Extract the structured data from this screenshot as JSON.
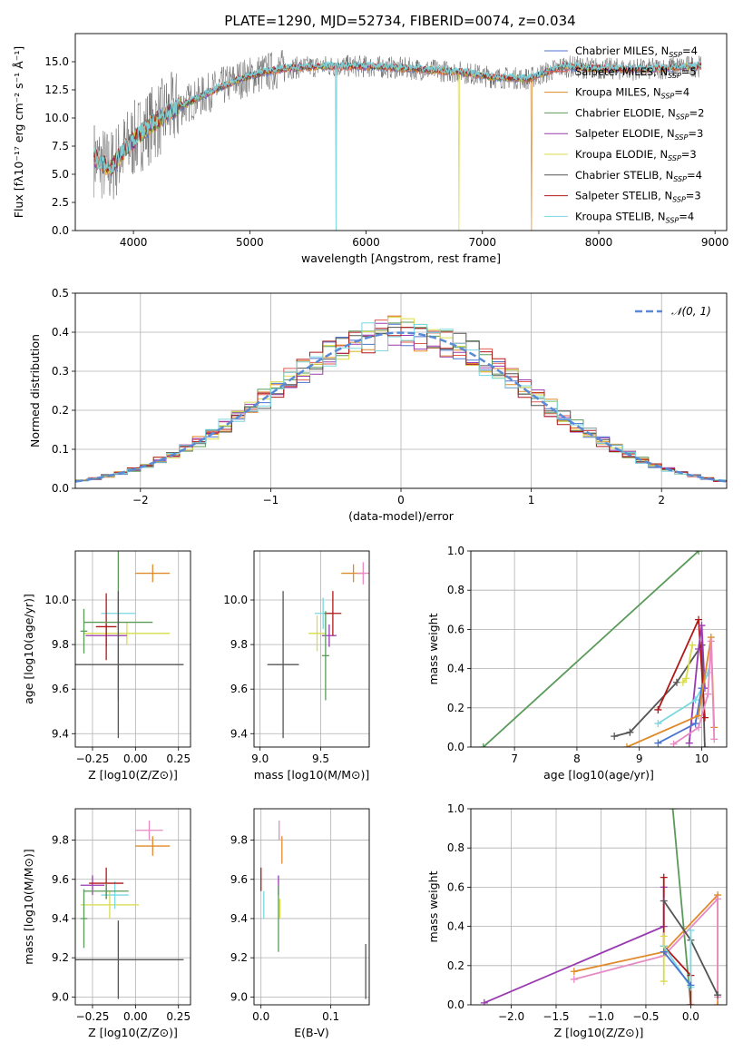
{
  "figure_title": "PLATE=1290, MJD=52734, FIBERID=0074, z=0.034",
  "legend_labels": [
    {
      "prefix": "Chabrier MILES, N",
      "n": "4",
      "color": "#4a74d0"
    },
    {
      "prefix": "Salpeter MILES, N",
      "n": "5",
      "color": "#e05a50"
    },
    {
      "prefix": "Kroupa MILES, N",
      "n": "4",
      "color": "#e08a2a"
    },
    {
      "prefix": "Chabrier ELODIE, N",
      "n": "2",
      "color": "#5a9a5a"
    },
    {
      "prefix": "Salpeter ELODIE, N",
      "n": "3",
      "color": "#9a3ab0"
    },
    {
      "prefix": "Kroupa ELODIE, N",
      "n": "3",
      "color": "#d8dc4a"
    },
    {
      "prefix": "Chabrier STELIB, N",
      "n": "4",
      "color": "#555555"
    },
    {
      "prefix": "Salpeter STELIB, N",
      "n": "3",
      "color": "#b01818"
    },
    {
      "prefix": "Kroupa STELIB, N",
      "n": "4",
      "color": "#7ad8e0"
    }
  ],
  "chart_data": [
    {
      "id": "spectrum",
      "type": "line",
      "title": "PLATE=1290, MJD=52734, FIBERID=0074, z=0.034",
      "xlabel": "wavelength [Angstrom, rest frame]",
      "ylabel": "Flux [fλ10⁻¹⁷ erg cm⁻² s⁻¹ Å⁻¹]",
      "xlim": [
        3500,
        9100
      ],
      "ylim": [
        0,
        17.5
      ],
      "xticks": [
        "4000",
        "5000",
        "6000",
        "7000",
        "8000",
        "9000"
      ],
      "yticks": [
        "0.0",
        "2.5",
        "5.0",
        "7.5",
        "10.0",
        "12.5",
        "15.0"
      ],
      "continuum_x": [
        3650,
        3800,
        3950,
        4100,
        4300,
        4500,
        4700,
        4900,
        5100,
        5300,
        5600,
        5900,
        6200,
        6500,
        6800,
        7100,
        7400,
        7700,
        8000,
        8400,
        8800
      ],
      "continuum_y": [
        6.5,
        5.5,
        7.5,
        9.0,
        10.5,
        11.5,
        12.5,
        13.4,
        14.0,
        14.4,
        14.6,
        14.6,
        14.5,
        14.3,
        14.1,
        13.6,
        13.5,
        14.6,
        14.4,
        14.3,
        14.6
      ],
      "absorption_dips": [
        {
          "x": 5740,
          "y": 0,
          "series": "Kroupa STELIB"
        },
        {
          "x": 6800,
          "y": 0,
          "series": "Kroupa ELODIE"
        },
        {
          "x": 7420,
          "y": 0,
          "series": "Kroupa MILES"
        }
      ]
    },
    {
      "id": "residuals",
      "type": "step",
      "xlabel": "(data-model)/error",
      "ylabel": "Normed distribution",
      "xlim": [
        -2.5,
        2.5
      ],
      "ylim": [
        0,
        0.5
      ],
      "xticks": [
        "−2",
        "−1",
        "0",
        "1",
        "2"
      ],
      "yticks": [
        "0.0",
        "0.1",
        "0.2",
        "0.3",
        "0.4",
        "0.5"
      ],
      "gaussian_label": "𝒩(0, 1)",
      "gaussian_color": "#5a8ad6",
      "bin_width": 0.1
    },
    {
      "id": "age_vs_Z",
      "type": "errorbar",
      "xlabel": "Z [log10(Z/Z⊙)]",
      "ylabel": "age  [log10(age/yr)]",
      "xlim": [
        -0.35,
        0.32
      ],
      "ylim": [
        9.34,
        10.22
      ],
      "xticks": [
        "−0.25",
        "0.00",
        "0.25"
      ],
      "yticks": [
        "9.4",
        "9.6",
        "9.8",
        "10.0"
      ],
      "points": [
        {
          "x": 0.1,
          "y": 10.12,
          "xerr": 0.1,
          "yerr": 0.04,
          "color": "#e08a2a"
        },
        {
          "x": -0.05,
          "y": 9.85,
          "xerr": 0.25,
          "yerr": 0.05,
          "color": "#d8dc4a"
        },
        {
          "x": -0.1,
          "y": 9.94,
          "xerr": 0.1,
          "yerr": 0.07,
          "color": "#7ad8e0"
        },
        {
          "x": -0.17,
          "y": 9.84,
          "xerr": 0.12,
          "yerr": 0.05,
          "color": "#9a3ab0"
        },
        {
          "x": -0.17,
          "y": 9.88,
          "xerr": 0.06,
          "yerr": 0.15,
          "color": "#b01818"
        },
        {
          "x": -0.1,
          "y": 9.9,
          "xerr": 0.2,
          "yerr": 0.35,
          "color": "#5a9a5a"
        },
        {
          "x": -0.1,
          "y": 9.71,
          "xerr": 0.38,
          "yerr": 0.33,
          "color": "#555555"
        },
        {
          "x": -0.3,
          "y": 9.86,
          "xerr": 0.02,
          "yerr": 0.1,
          "color": "#5a9a5a"
        }
      ]
    },
    {
      "id": "age_vs_mass",
      "type": "errorbar",
      "xlabel": "mass [log10(M/M⊙)]",
      "ylabel": "",
      "xlim": [
        8.95,
        9.9
      ],
      "ylim": [
        9.34,
        10.22
      ],
      "xticks": [
        "9.0",
        "9.5"
      ],
      "yticks": [
        "9.4",
        "9.6",
        "9.8",
        "10.0"
      ],
      "points": [
        {
          "x": 9.77,
          "y": 10.12,
          "xerr": 0.1,
          "yerr": 0.04,
          "color": "#e08a2a"
        },
        {
          "x": 9.85,
          "y": 10.12,
          "xerr": 0.05,
          "yerr": 0.05,
          "color": "#e78ac3"
        },
        {
          "x": 9.47,
          "y": 9.85,
          "xerr": 0.07,
          "yerr": 0.08,
          "color": "#d8dc4a"
        },
        {
          "x": 9.52,
          "y": 9.94,
          "xerr": 0.07,
          "yerr": 0.07,
          "color": "#7ad8e0"
        },
        {
          "x": 9.57,
          "y": 9.84,
          "xerr": 0.06,
          "yerr": 0.05,
          "color": "#9a3ab0"
        },
        {
          "x": 9.6,
          "y": 9.94,
          "xerr": 0.07,
          "yerr": 0.1,
          "color": "#b01818"
        },
        {
          "x": 9.54,
          "y": 9.75,
          "xerr": 0.03,
          "yerr": 0.2,
          "color": "#5a9a5a"
        },
        {
          "x": 9.19,
          "y": 9.71,
          "xerr": 0.13,
          "yerr": 0.33,
          "color": "#555555"
        }
      ]
    },
    {
      "id": "weight_vs_age",
      "type": "line",
      "xlabel": "age  [log10(age/yr)]",
      "ylabel": "mass weight",
      "xlim": [
        6.3,
        10.4
      ],
      "ylim": [
        0,
        1.0
      ],
      "xticks": [
        "7",
        "8",
        "9",
        "10"
      ],
      "yticks": [
        "0.0",
        "0.2",
        "0.4",
        "0.6",
        "0.8",
        "1.0"
      ],
      "series": [
        {
          "color": "#5a9a5a",
          "x": [
            6.5,
            9.95
          ],
          "y": [
            0.0,
            1.0
          ]
        },
        {
          "color": "#555555",
          "x": [
            8.6,
            8.85,
            9.6,
            10.0,
            10.05
          ],
          "y": [
            0.055,
            0.075,
            0.33,
            0.52,
            0.0
          ]
        },
        {
          "color": "#b01818",
          "x": [
            9.3,
            9.95,
            10.05
          ],
          "y": [
            0.19,
            0.65,
            0.15
          ]
        },
        {
          "color": "#9a3ab0",
          "x": [
            9.8,
            9.95,
            10.0,
            10.05
          ],
          "y": [
            0.02,
            0.5,
            0.62,
            0.3
          ]
        },
        {
          "color": "#7ad8e0",
          "x": [
            9.3,
            9.9,
            10.0,
            10.1
          ],
          "y": [
            0.12,
            0.24,
            0.3,
            0.38
          ]
        },
        {
          "color": "#d8dc4a",
          "x": [
            9.7,
            9.75,
            9.85
          ],
          "y": [
            0.33,
            0.35,
            0.52
          ]
        },
        {
          "color": "#4a74d0",
          "x": [
            9.3,
            9.9,
            10.0
          ],
          "y": [
            0.02,
            0.12,
            0.3
          ]
        },
        {
          "color": "#e08a2a",
          "x": [
            8.8,
            9.95,
            10.15,
            10.2
          ],
          "y": [
            0.0,
            0.16,
            0.56,
            0.1
          ]
        },
        {
          "color": "#e78ac3",
          "x": [
            9.55,
            9.95,
            10.1,
            10.15,
            10.2
          ],
          "y": [
            0.015,
            0.1,
            0.27,
            0.54,
            0.04
          ]
        }
      ]
    },
    {
      "id": "mass_vs_Z",
      "type": "errorbar",
      "xlabel": "Z [log10(Z/Z⊙)]",
      "ylabel": "mass [log10(M/M⊙)]",
      "xlim": [
        -0.35,
        0.32
      ],
      "ylim": [
        8.96,
        9.96
      ],
      "xticks": [
        "−0.25",
        "0.00",
        "0.25"
      ],
      "yticks": [
        "9.0",
        "9.2",
        "9.4",
        "9.6",
        "9.8"
      ],
      "points": [
        {
          "x": 0.1,
          "y": 9.77,
          "xerr": 0.1,
          "yerr": 0.05,
          "color": "#e08a2a"
        },
        {
          "x": 0.08,
          "y": 9.85,
          "xerr": 0.08,
          "yerr": 0.05,
          "color": "#e78ac3"
        },
        {
          "x": -0.15,
          "y": 9.47,
          "xerr": 0.17,
          "yerr": 0.07,
          "color": "#d8dc4a"
        },
        {
          "x": -0.12,
          "y": 9.52,
          "xerr": 0.08,
          "yerr": 0.07,
          "color": "#7ad8e0"
        },
        {
          "x": -0.25,
          "y": 9.57,
          "xerr": 0.07,
          "yerr": 0.05,
          "color": "#9a3ab0"
        },
        {
          "x": -0.17,
          "y": 9.58,
          "xerr": 0.1,
          "yerr": 0.08,
          "color": "#b01818"
        },
        {
          "x": -0.17,
          "y": 9.54,
          "xerr": 0.13,
          "yerr": 0.04,
          "color": "#5a9a5a"
        },
        {
          "x": -0.1,
          "y": 9.19,
          "xerr": 0.38,
          "yerr": 0.2,
          "color": "#555555"
        },
        {
          "x": -0.3,
          "y": 9.4,
          "xerr": 0.02,
          "yerr": 0.15,
          "color": "#5a9a5a"
        }
      ]
    },
    {
      "id": "mass_vs_EBV",
      "type": "errorbar",
      "xlabel": "E(B-V)",
      "ylabel": "",
      "xlim": [
        -0.01,
        0.155
      ],
      "ylim": [
        8.96,
        9.96
      ],
      "xticks": [
        "0.0",
        "0.1"
      ],
      "yticks": [
        "9.0",
        "9.2",
        "9.4",
        "9.6",
        "9.8"
      ],
      "points": [
        {
          "x": 0.0,
          "y": 9.6,
          "xerr": 0,
          "yerr": 0.06,
          "color": "#b01818"
        },
        {
          "x": 0.004,
          "y": 9.47,
          "xerr": 0,
          "yerr": 0.07,
          "color": "#7ad8e0"
        },
        {
          "x": 0.025,
          "y": 9.57,
          "xerr": 0,
          "yerr": 0.05,
          "color": "#9a3ab0"
        },
        {
          "x": 0.025,
          "y": 9.4,
          "xerr": 0,
          "yerr": 0.17,
          "color": "#5a9a5a"
        },
        {
          "x": 0.026,
          "y": 9.85,
          "xerr": 0,
          "yerr": 0.05,
          "color": "#e78ac3"
        },
        {
          "x": 0.03,
          "y": 9.75,
          "xerr": 0,
          "yerr": 0.07,
          "color": "#e08a2a"
        },
        {
          "x": 0.027,
          "y": 9.45,
          "xerr": 0,
          "yerr": 0.05,
          "color": "#d8dc4a"
        },
        {
          "x": 0.15,
          "y": 9.13,
          "xerr": 0,
          "yerr": 0.14,
          "color": "#555555"
        }
      ]
    },
    {
      "id": "weight_vs_Z",
      "type": "line",
      "xlabel": "Z [log10(Z/Z⊙)]",
      "ylabel": "mass weight",
      "xlim": [
        -2.45,
        0.4
      ],
      "ylim": [
        0,
        1.0
      ],
      "xticks": [
        "−2.0",
        "−1.5",
        "−1.0",
        "−0.5",
        "0.0"
      ],
      "yticks": [
        "0.0",
        "0.2",
        "0.4",
        "0.6",
        "0.8",
        "1.0"
      ],
      "series": [
        {
          "color": "#5a9a5a",
          "x": [
            -0.2,
            0.0
          ],
          "y": [
            1.0,
            0.0
          ]
        },
        {
          "color": "#9a3ab0",
          "x": [
            -2.3,
            -0.3,
            -0.3
          ],
          "y": [
            0.01,
            0.4,
            0.6
          ]
        },
        {
          "color": "#e08a2a",
          "x": [
            -1.3,
            -0.3,
            0.3,
            0.3
          ],
          "y": [
            0.17,
            0.27,
            0.56,
            0.0
          ]
        },
        {
          "color": "#e78ac3",
          "x": [
            -1.3,
            -0.3,
            0.3,
            0.3
          ],
          "y": [
            0.13,
            0.25,
            0.54,
            0.04
          ]
        },
        {
          "color": "#b01818",
          "x": [
            -0.3,
            -0.3,
            0.0,
            0.0
          ],
          "y": [
            0.65,
            0.3,
            0.15,
            0.0
          ]
        },
        {
          "color": "#555555",
          "x": [
            -0.3,
            0.0,
            0.3
          ],
          "y": [
            0.53,
            0.33,
            0.05
          ]
        },
        {
          "color": "#7ad8e0",
          "x": [
            -0.3,
            0.0,
            0.0
          ],
          "y": [
            0.3,
            0.09,
            0.38
          ]
        },
        {
          "color": "#d8dc4a",
          "x": [
            -0.3,
            -0.3
          ],
          "y": [
            0.35,
            0.12
          ]
        },
        {
          "color": "#4a74d0",
          "x": [
            -0.3,
            0.0
          ],
          "y": [
            0.27,
            0.1
          ]
        }
      ]
    }
  ]
}
